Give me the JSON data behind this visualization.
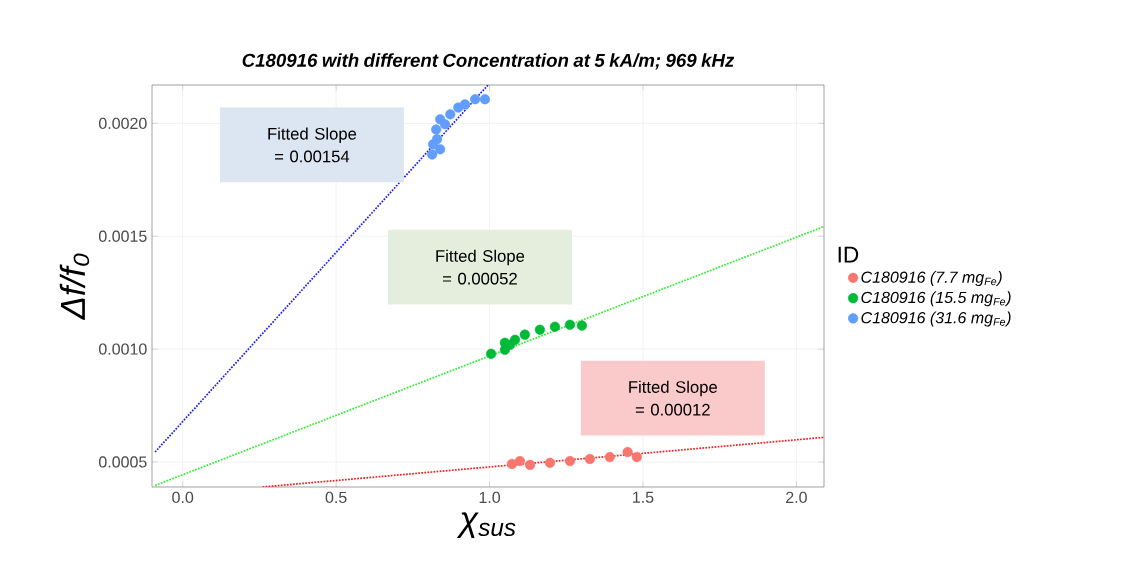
{
  "chart_data": {
    "type": "scatter",
    "title": "C180916 with different Concentration at 5 kA/m; 969 kHz",
    "xlabel": "χ$_{sus}$",
    "ylabel": "Δf/f₀",
    "legend_title": "ID",
    "xlim": [
      -0.1,
      2.09
    ],
    "ylim": [
      0.000389,
      0.00217
    ],
    "xticks": [
      {
        "value": 0,
        "label": "0.0"
      },
      0.5,
      {
        "value": 1,
        "label": "1.0"
      },
      1.5,
      {
        "value": 2,
        "label": "2.0"
      }
    ],
    "yticks": [
      0.0005,
      {
        "value": 0.001,
        "label": "0.0010"
      },
      0.0015,
      {
        "value": 0.002,
        "label": "0.0020"
      }
    ],
    "grid": true,
    "legend": "right",
    "series": [
      {
        "name": "C180916 (7.7 mg$_{Fe}$)",
        "color": "#f8766d",
        "marker": "circle",
        "x": [
          1.073,
          1.099,
          1.132,
          1.197,
          1.262,
          1.327,
          1.392,
          1.45,
          1.48
        ],
        "values": [
          0.000491,
          0.000504,
          0.000487,
          0.000496,
          0.000504,
          0.000513,
          0.000522,
          0.000544,
          0.000522
        ]
      },
      {
        "name": "C180916 (15.5 mg$_{Fe}$)",
        "color": "#00ba38",
        "marker": "circle",
        "x": [
          1.005,
          1.05,
          1.05,
          1.067,
          1.083,
          1.115,
          1.164,
          1.213,
          1.262,
          1.301
        ],
        "values": [
          0.000979,
          0.000997,
          0.001028,
          0.001019,
          0.001041,
          0.001064,
          0.001086,
          0.001099,
          0.001108,
          0.001104
        ]
      },
      {
        "name": "C180916 (31.6 mg$_{Fe}$)",
        "color": "#619cff",
        "marker": "circle",
        "x": [
          0.813,
          0.816,
          0.826,
          0.829,
          0.839,
          0.839,
          0.855,
          0.872,
          0.898,
          0.92,
          0.953,
          0.985
        ],
        "values": [
          0.001862,
          0.001907,
          0.001973,
          0.00193,
          0.002018,
          0.001885,
          0.001996,
          0.00204,
          0.00207,
          0.002084,
          0.002107,
          0.002107
        ]
      },
      {
        "type": "line",
        "color": "#ee2222",
        "line_style": "dotted",
        "marker": "none",
        "x": [
          0.26,
          2.09
        ],
        "values": [
          0.000389,
          0.000609
        ]
      },
      {
        "type": "line",
        "color": "#33ee33",
        "line_style": "dotted",
        "marker": "none",
        "x": [
          -0.09,
          2.09
        ],
        "values": [
          0.000396,
          0.001543
        ]
      },
      {
        "type": "line",
        "color": "#2222ee",
        "line_style": "dotted",
        "marker": "none",
        "x": [
          -0.09,
          0.995
        ],
        "values": [
          0.000544,
          0.00217
        ]
      }
    ],
    "annotations": [
      "Fitted Slope = 0.00154",
      "Fitted Slope = 0.00052",
      "Fitted Slope = 0.00012"
    ]
  }
}
